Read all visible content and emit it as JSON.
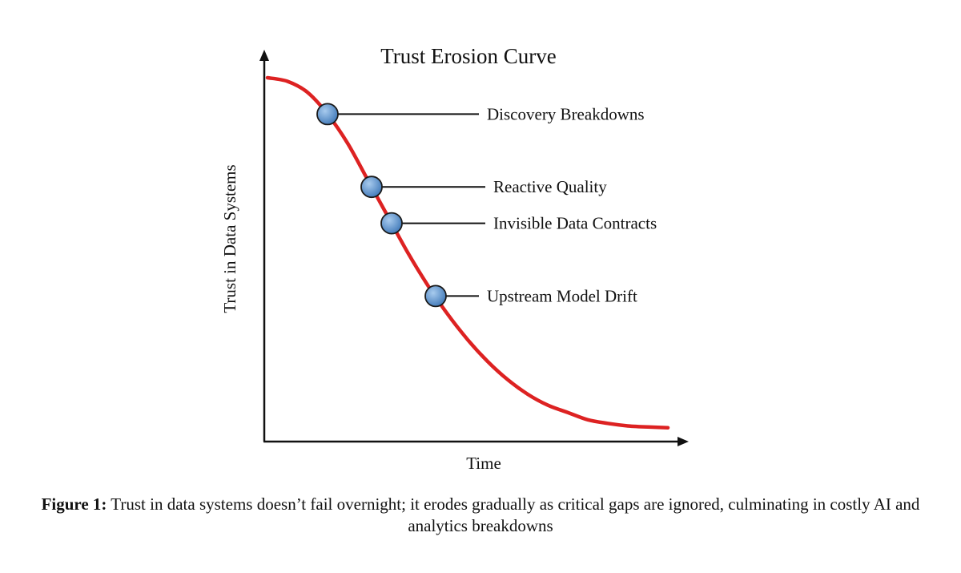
{
  "chart_data": {
    "type": "line",
    "title": "Trust Erosion Curve",
    "xlabel": "Time",
    "ylabel": "Trust in Data Systems",
    "curve_color": "#dd2222",
    "marker_color": "#5b93d0",
    "series": [
      {
        "x": [
          0,
          5,
          10,
          15,
          20,
          25,
          30,
          35,
          40,
          45,
          50,
          55,
          60,
          65,
          70,
          75,
          80,
          85,
          90,
          95,
          100
        ],
        "y": [
          100,
          99,
          96,
          90,
          82,
          72,
          62,
          52,
          43,
          35,
          28,
          22,
          17,
          13,
          10,
          8,
          6,
          5,
          4.3,
          4,
          3.8
        ]
      }
    ],
    "annotations": [
      {
        "label": "Discovery Breakdowns",
        "x": 15,
        "y": 90
      },
      {
        "label": "Reactive Quality",
        "x": 26,
        "y": 70
      },
      {
        "label": "Invisible Data Contracts",
        "x": 31,
        "y": 60
      },
      {
        "label": "Upstream Model Drift",
        "x": 42,
        "y": 40
      }
    ],
    "xlim": [
      0,
      100
    ],
    "ylim": [
      0,
      100
    ],
    "grid": false
  },
  "caption": {
    "label": "Figure 1:",
    "text": "Trust in data systems doesn’t fail overnight; it erodes gradually as critical gaps are ignored, culminating in costly AI and analytics breakdowns"
  }
}
